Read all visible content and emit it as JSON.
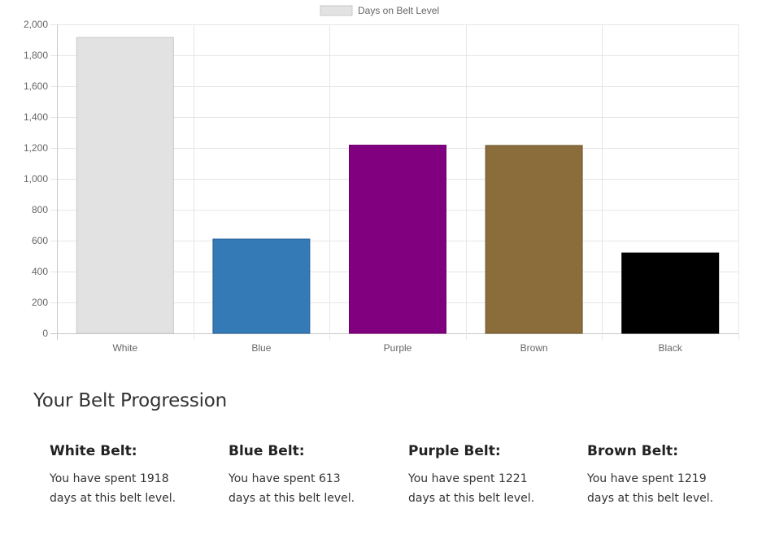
{
  "chart_data": {
    "type": "bar",
    "legend": "Days on Belt Level",
    "legend_position": "top",
    "categories": [
      "White",
      "Blue",
      "Purple",
      "Brown",
      "Black"
    ],
    "values": [
      1918,
      613,
      1221,
      1219,
      523
    ],
    "colors": [
      "#e2e2e2",
      "#337ab7",
      "#800080",
      "#8b6d3c",
      "#000000"
    ],
    "border_colors": [
      "#c8c8c8",
      "#2a6399",
      "#6e006e",
      "#6e5630",
      "#000000"
    ],
    "ylim": [
      0,
      2000
    ],
    "yticks": [
      0,
      200,
      400,
      600,
      800,
      1000,
      1200,
      1400,
      1600,
      1800,
      2000
    ],
    "ytick_labels": [
      "0",
      "200",
      "400",
      "600",
      "800",
      "1,000",
      "1,200",
      "1,400",
      "1,600",
      "1,800",
      "2,000"
    ],
    "grid": true,
    "title": "",
    "xlabel": "",
    "ylabel": ""
  },
  "section": {
    "title": "Your Belt Progression"
  },
  "belts": [
    {
      "title": "White Belt:",
      "desc": "You have spent 1918 days at this belt level."
    },
    {
      "title": "Blue Belt:",
      "desc": "You have spent 613 days at this belt level."
    },
    {
      "title": "Purple Belt:",
      "desc": "You have spent 1221 days at this belt level."
    },
    {
      "title": "Brown Belt:",
      "desc": "You have spent 1219 days at this belt level."
    }
  ]
}
